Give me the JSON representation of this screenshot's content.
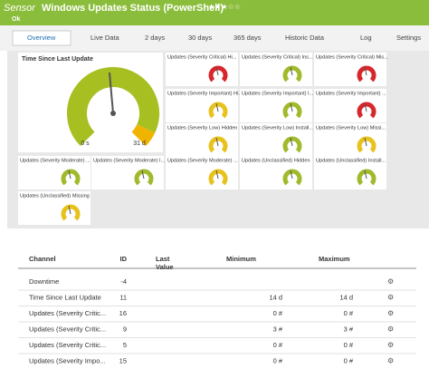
{
  "header": {
    "prefix": "Sensor",
    "title": "Windows Updates Status (PowerShell)",
    "status": "Ok"
  },
  "tabs": [
    "Overview",
    "Live Data",
    "2 days",
    "30 days",
    "365 days",
    "Historic Data",
    "Log",
    "Settings"
  ],
  "gauges": {
    "main": {
      "label": "Time Since Last Update",
      "min_label": "0 s",
      "max_label": "31 d"
    },
    "small": [
      {
        "label": "Updates (Severity Critical) Hi...",
        "color": "#d7262c"
      },
      {
        "label": "Updates (Severity Critical) Ins...",
        "color": "#9fba2a"
      },
      {
        "label": "Updates (Severity Critical) Mis...",
        "color": "#d7262c"
      },
      {
        "label": "Updates (Severity Important) Hi...",
        "color": "#e8c21c"
      },
      {
        "label": "Updates (Severity Important) I...",
        "color": "#9fba2a"
      },
      {
        "label": "Updates (Severity Important) ...",
        "color": "#d7262c"
      },
      {
        "label": "Updates (Severity Low) Hidden",
        "color": "#e8c21c"
      },
      {
        "label": "Updates (Severity Low) Install...",
        "color": "#9fba2a"
      },
      {
        "label": "Updates (Severity Low) Missi...",
        "color": "#e8c21c"
      },
      {
        "label": "Updates (Severity Moderate) ...",
        "color": "#9fba2a"
      },
      {
        "label": "Updates (Severity Moderate) I...",
        "color": "#9fba2a"
      },
      {
        "label": "Updates (Severity Moderate) ...",
        "color": "#e8c21c"
      },
      {
        "label": "Updates (Unclassified) Hidden",
        "color": "#9fba2a"
      },
      {
        "label": "Updates (Unclassified) Install...",
        "color": "#9fba2a"
      },
      {
        "label": "Updates (Unclassified) Missing",
        "color": "#e8c21c"
      }
    ]
  },
  "table": {
    "columns": [
      "Channel",
      "ID",
      "Last Value",
      "Minimum",
      "Maximum"
    ],
    "rows": [
      {
        "channel": "Downtime",
        "id": -4
      },
      {
        "channel": "Time Since Last Update",
        "id": 11,
        "minimum": "14 d",
        "maximum": "14 d"
      },
      {
        "channel": "Updates (Severity Critic...",
        "id": 16,
        "minimum": "0 #",
        "maximum": "0 #"
      },
      {
        "channel": "Updates (Severity Critic...",
        "id": 9,
        "minimum": "3 #",
        "maximum": "3 #"
      },
      {
        "channel": "Updates (Severity Critic...",
        "id": 5,
        "minimum": "0 #",
        "maximum": "0 #"
      },
      {
        "channel": "Updates (Severity Impo...",
        "id": 15,
        "minimum": "0 #",
        "maximum": "0 #"
      }
    ]
  }
}
